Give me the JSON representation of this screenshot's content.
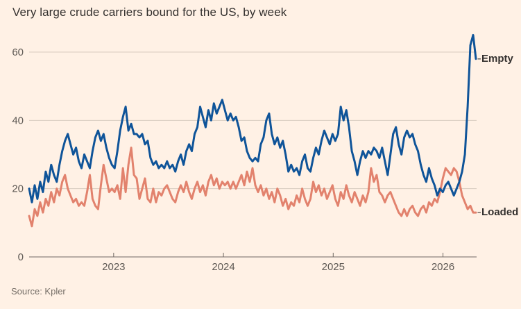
{
  "title": "Very large crude carriers bound for the US, by week",
  "source": "Source: Kpler",
  "legend": {
    "empty": "Empty",
    "loaded": "Loaded"
  },
  "colors": {
    "background": "#fff1e5",
    "empty_line": "#0f5499",
    "loaded_line": "#e2826d",
    "gridline": "#d8ccc0",
    "axis": "#6f6862",
    "text": "#33302e",
    "axis_text": "#5f5a55"
  },
  "chart_data": {
    "type": "line",
    "title": "Very large crude carriers bound for the US, by week",
    "xlabel": "",
    "ylabel": "",
    "x_start": 2022.23,
    "x_end": 2026.3,
    "x_ticks": [
      2023,
      2024,
      2025,
      2026
    ],
    "y_ticks": [
      0,
      20,
      40,
      60
    ],
    "ylim": [
      0,
      68
    ],
    "grid": "horizontal",
    "legend_position": "line-end-labels",
    "series": [
      {
        "name": "Empty",
        "color": "#0f5499",
        "values": [
          20,
          16,
          21,
          17,
          22,
          19,
          25,
          22,
          27,
          24,
          22,
          27,
          31,
          34,
          36,
          33,
          30,
          32,
          28,
          26,
          30,
          28,
          26,
          31,
          35,
          37,
          34,
          36,
          32,
          29,
          27,
          26,
          31,
          37,
          41,
          44,
          37,
          39,
          36,
          36,
          35,
          36,
          33,
          34,
          29,
          27,
          28,
          26,
          27,
          26,
          28,
          26,
          27,
          25,
          28,
          30,
          27,
          31,
          33,
          31,
          36,
          38,
          44,
          41,
          38,
          43,
          40,
          45,
          42,
          44,
          46,
          43,
          40,
          42,
          40,
          41,
          38,
          34,
          35,
          31,
          29,
          28,
          29,
          28,
          33,
          35,
          40,
          42,
          36,
          33,
          35,
          32,
          34,
          30,
          25,
          27,
          25,
          26,
          24,
          28,
          30,
          26,
          25,
          29,
          32,
          30,
          34,
          37,
          35,
          33,
          36,
          34,
          36,
          44,
          40,
          43,
          38,
          31,
          28,
          24,
          28,
          31,
          29,
          31,
          30,
          32,
          31,
          29,
          32,
          28,
          24,
          30,
          36,
          38,
          33,
          30,
          35,
          37,
          35,
          36,
          33,
          31,
          27,
          24,
          22,
          26,
          23,
          21,
          18,
          20,
          19,
          21,
          22,
          20,
          18,
          20,
          22,
          25,
          30,
          44,
          62,
          65,
          58
        ]
      },
      {
        "name": "Loaded",
        "color": "#e2826d",
        "values": [
          12,
          9,
          14,
          12,
          16,
          13,
          17,
          15,
          19,
          16,
          20,
          18,
          22,
          24,
          20,
          18,
          16,
          17,
          15,
          16,
          15,
          19,
          24,
          17,
          15,
          14,
          21,
          27,
          23,
          19,
          20,
          19,
          21,
          17,
          26,
          19,
          27,
          32,
          24,
          23,
          17,
          20,
          23,
          17,
          16,
          20,
          16,
          19,
          18,
          20,
          21,
          19,
          17,
          16,
          19,
          21,
          19,
          22,
          19,
          17,
          20,
          22,
          19,
          21,
          18,
          22,
          24,
          21,
          23,
          20,
          22,
          21,
          22,
          20,
          22,
          20,
          22,
          24,
          21,
          25,
          22,
          26,
          21,
          19,
          21,
          18,
          20,
          17,
          19,
          16,
          20,
          18,
          15,
          17,
          14,
          16,
          15,
          18,
          16,
          20,
          17,
          15,
          17,
          22,
          19,
          21,
          18,
          20,
          17,
          19,
          21,
          17,
          15,
          19,
          17,
          21,
          18,
          16,
          19,
          17,
          15,
          18,
          16,
          19,
          26,
          22,
          24,
          19,
          18,
          16,
          18,
          19,
          17,
          15,
          13,
          12,
          14,
          12,
          14,
          15,
          13,
          12,
          14,
          15,
          13,
          16,
          15,
          17,
          16,
          19,
          23,
          26,
          25,
          24,
          26,
          25,
          22,
          18,
          16,
          14,
          15,
          13,
          13
        ]
      }
    ]
  }
}
